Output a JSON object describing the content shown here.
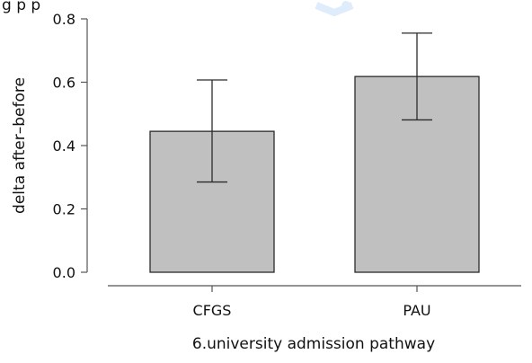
{
  "top_text_fragment": "g               p     p",
  "chart_data": {
    "type": "bar",
    "categories": [
      "CFGS",
      "PAU"
    ],
    "values": [
      0.445,
      0.618
    ],
    "error_bars": [
      {
        "low": 0.285,
        "high": 0.607
      },
      {
        "low": 0.481,
        "high": 0.755
      }
    ],
    "xlabel": "6.university admission pathway",
    "ylabel": "delta after–before",
    "ylim": [
      0.0,
      0.8
    ],
    "yticks": [
      "0.0",
      "0.2",
      "0.4",
      "0.6",
      "0.8"
    ],
    "grid": false,
    "colors": {
      "bar_fill": "#c0c0c0",
      "bar_stroke": "#2b2b2b",
      "axis": "#555555",
      "watermark": "#dbeafc"
    }
  }
}
